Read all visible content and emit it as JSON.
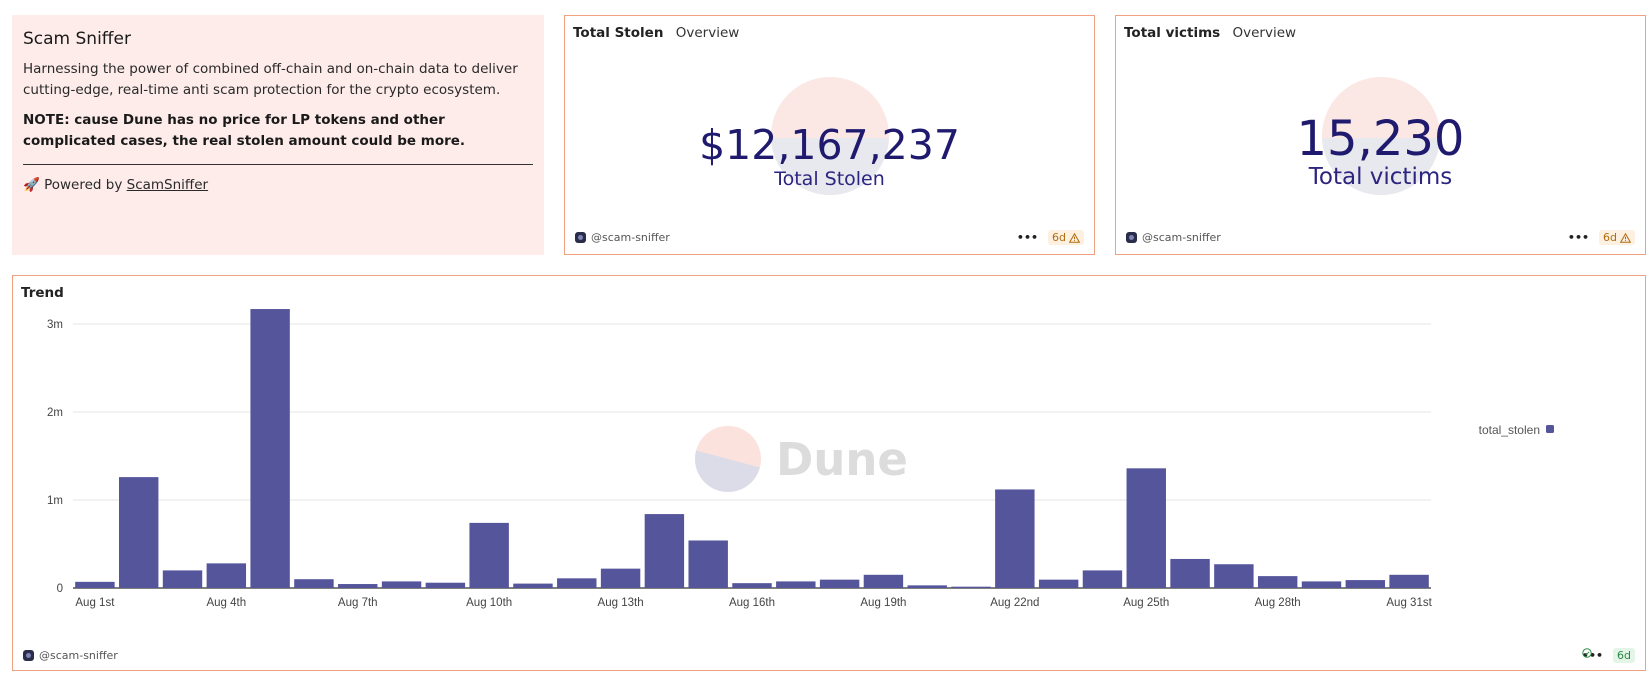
{
  "about": {
    "title": "Scam Sniffer",
    "description": "Harnessing the power of combined off-chain and on-chain data to deliver cutting-edge, real-time anti scam protection for the crypto ecosystem.",
    "note": "NOTE: cause Dune has no price for LP tokens and other complicated cases, the real stolen amount could be more.",
    "powered_prefix": "🚀 Powered by ",
    "powered_link": "ScamSniffer"
  },
  "stolen_card": {
    "title": "Total Stolen",
    "subtitle": "Overview",
    "value": "$12,167,237",
    "label": "Total Stolen",
    "user": "@scam-sniffer",
    "age": "6d",
    "status": "warning"
  },
  "victims_card": {
    "title": "Total victims",
    "subtitle": "Overview",
    "value": "15,230",
    "label": "Total victims",
    "user": "@scam-sniffer",
    "age": "6d",
    "status": "warning"
  },
  "trend_card": {
    "title": "Trend",
    "user": "@scam-sniffer",
    "age": "6d",
    "status": "ok",
    "watermark": "Dune",
    "colors": {
      "bar": "#55559c",
      "accent": "#f1a080"
    }
  },
  "chart_data": {
    "type": "bar",
    "title": "Trend",
    "xlabel": "",
    "ylabel": "",
    "ylim": [
      0,
      3200000
    ],
    "yticks": [
      0,
      1000000,
      2000000,
      3000000
    ],
    "ytick_labels": [
      "0",
      "1m",
      "2m",
      "3m"
    ],
    "xtick_labels": [
      "Aug 1st",
      "Aug 4th",
      "Aug 7th",
      "Aug 10th",
      "Aug 13th",
      "Aug 16th",
      "Aug 19th",
      "Aug 22nd",
      "Aug 25th",
      "Aug 28th",
      "Aug 31st"
    ],
    "grid": true,
    "legend": "right",
    "categories": [
      "Aug 1",
      "Aug 2",
      "Aug 3",
      "Aug 4",
      "Aug 5",
      "Aug 6",
      "Aug 7",
      "Aug 8",
      "Aug 9",
      "Aug 10",
      "Aug 11",
      "Aug 12",
      "Aug 13",
      "Aug 14",
      "Aug 15",
      "Aug 16",
      "Aug 17",
      "Aug 18",
      "Aug 19",
      "Aug 20",
      "Aug 21",
      "Aug 22",
      "Aug 23",
      "Aug 24",
      "Aug 25",
      "Aug 26",
      "Aug 27",
      "Aug 28",
      "Aug 29",
      "Aug 30",
      "Aug 31"
    ],
    "series": [
      {
        "name": "total_stolen",
        "values": [
          70000,
          1260000,
          200000,
          280000,
          3170000,
          100000,
          45000,
          75000,
          60000,
          740000,
          50000,
          110000,
          220000,
          840000,
          540000,
          55000,
          75000,
          95000,
          150000,
          30000,
          15000,
          1120000,
          95000,
          200000,
          1360000,
          330000,
          270000,
          135000,
          75000,
          90000,
          150000
        ]
      }
    ]
  }
}
